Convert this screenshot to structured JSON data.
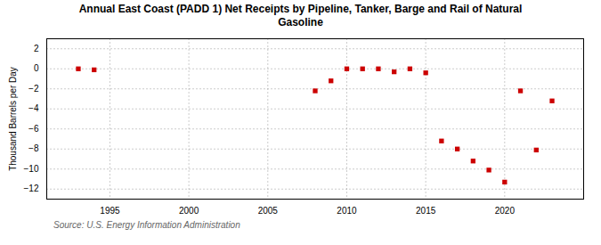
{
  "chart_data": {
    "type": "scatter",
    "title": "Annual East Coast (PADD 1) Net Receipts by Pipeline, Tanker, Barge and Rail of Natural\nGasoline",
    "ylabel": "Thousand Barrels per Day",
    "source": "Source: U.S. Energy Information Administration",
    "x": [
      1993,
      1994,
      2008,
      2009,
      2010,
      2011,
      2012,
      2013,
      2014,
      2015,
      2016,
      2017,
      2018,
      2019,
      2020,
      2021,
      2022,
      2023
    ],
    "values": [
      0.0,
      -0.1,
      -2.2,
      -1.2,
      0.0,
      0.0,
      0.0,
      -0.3,
      0.0,
      -0.4,
      -7.2,
      -8.0,
      -9.2,
      -10.1,
      -11.3,
      -2.2,
      -8.1,
      -3.2
    ],
    "color": "#cc0000",
    "marker": "square",
    "xlim": [
      1991,
      2025
    ],
    "ylim": [
      -13,
      3
    ],
    "xticks": [
      1995,
      2000,
      2005,
      2010,
      2015,
      2020
    ],
    "yticks": [
      2,
      0,
      -2,
      -4,
      -6,
      -8,
      -10,
      -12
    ],
    "grid": true
  }
}
